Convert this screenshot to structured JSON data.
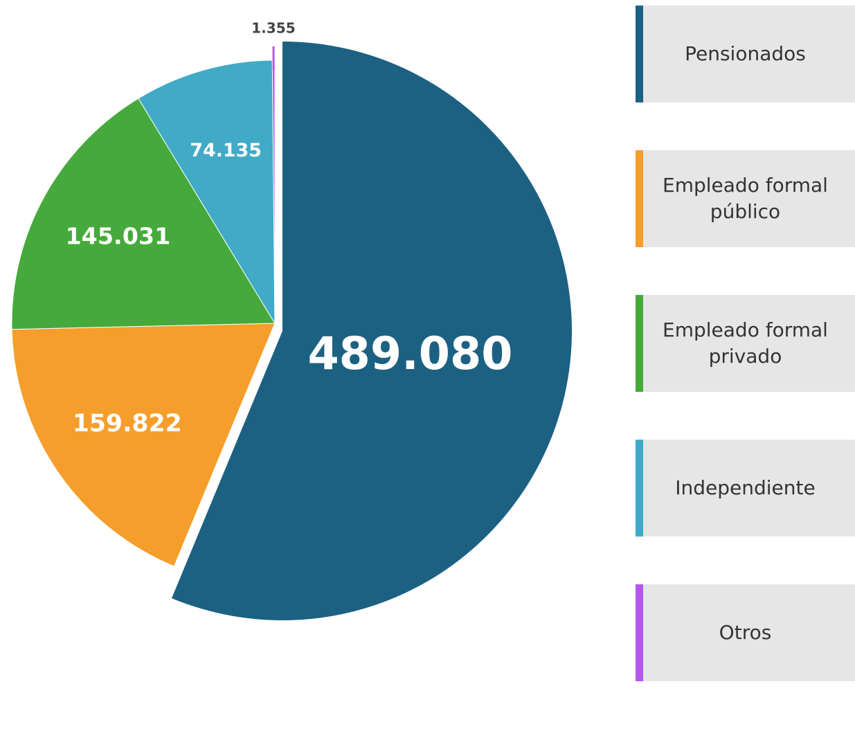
{
  "chart_data": {
    "type": "pie",
    "categories": [
      "Pensionados",
      "Empleado formal público",
      "Empleado formal privado",
      "Independiente",
      "Otros"
    ],
    "values": [
      489080,
      159822,
      145031,
      74135,
      1355
    ],
    "value_labels": [
      "489.080",
      "159.822",
      "145.031",
      "74.135",
      "1.355"
    ],
    "colors": [
      "#1c6182",
      "#f59e2b",
      "#45aa3b",
      "#41aac6",
      "#b457f0"
    ]
  }
}
